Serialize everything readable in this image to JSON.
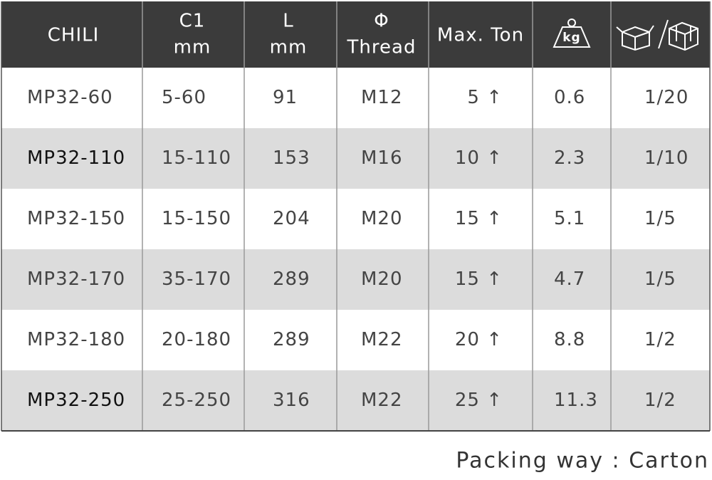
{
  "table": {
    "header": [
      "CHILI",
      [
        "C1",
        "mm"
      ],
      [
        "L",
        "mm"
      ],
      [
        "Φ",
        "Thread"
      ],
      "Max. Ton",
      "kg"
    ],
    "rows": [
      [
        "MP32-60",
        "5-60",
        "91",
        "M12",
        "5 ↑",
        "0.6",
        "1/20"
      ],
      [
        "MP32-110",
        "15-110",
        "153",
        "M16",
        "10 ↑",
        "2.3",
        "1/10"
      ],
      [
        "MP32-150",
        "15-150",
        "204",
        "M20",
        "15 ↑",
        "5.1",
        "1/5"
      ],
      [
        "MP32-170",
        "35-170",
        "289",
        "M20",
        "15 ↑",
        "4.7",
        "1/5"
      ],
      [
        "MP32-180",
        "20-180",
        "289",
        "M22",
        "20 ↑",
        "8.8",
        "1/2"
      ],
      [
        "MP32-250",
        "25-250",
        "316",
        "M22",
        "25 ↑",
        "11.3",
        "1/2"
      ]
    ]
  },
  "footer": "Packing way : Carton"
}
